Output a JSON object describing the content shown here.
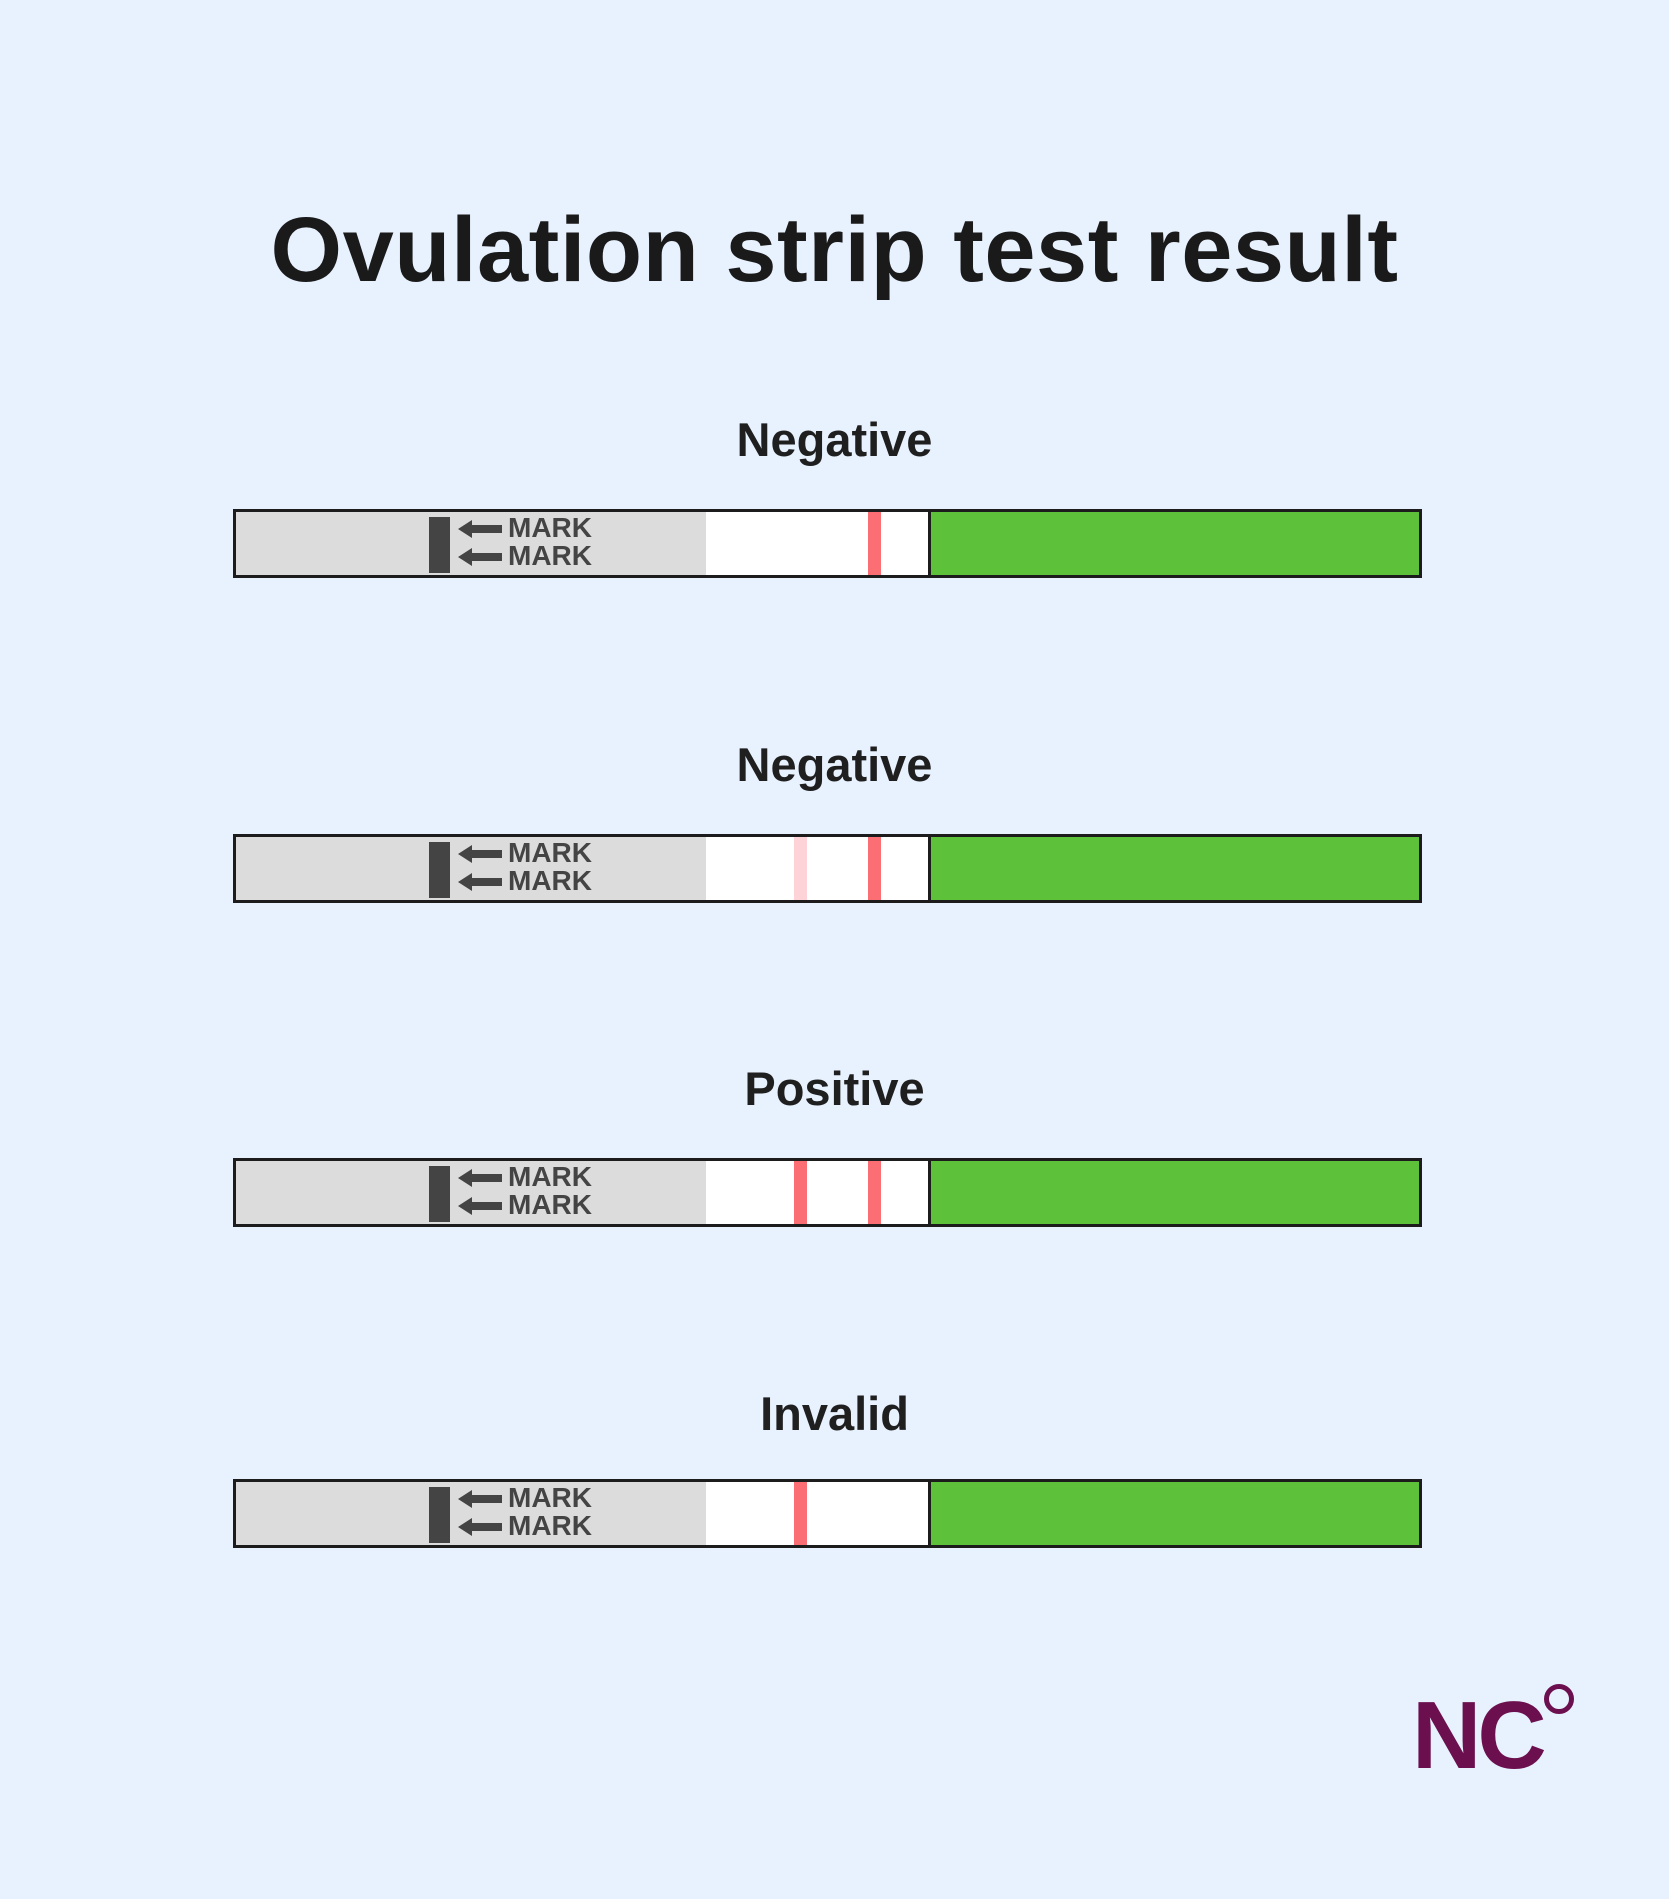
{
  "title": "Ovulation strip test result",
  "mark_text": "MARK",
  "colors": {
    "background": "#e8f2fe",
    "handle": "#dcdcdc",
    "absorbent": "#5dc13a",
    "line_strong": "#fa6e74",
    "line_faint": "#fdd3d7",
    "logo": "#6b0f4e"
  },
  "strips": [
    {
      "label": "Negative",
      "test_line": "none",
      "control_line": "strong"
    },
    {
      "label": "Negative",
      "test_line": "faint",
      "control_line": "strong"
    },
    {
      "label": "Positive",
      "test_line": "strong",
      "control_line": "strong"
    },
    {
      "label": "Invalid",
      "test_line": "strong",
      "control_line": "none"
    }
  ],
  "logo": {
    "text": "NC",
    "icon": "degree-circle-icon"
  }
}
